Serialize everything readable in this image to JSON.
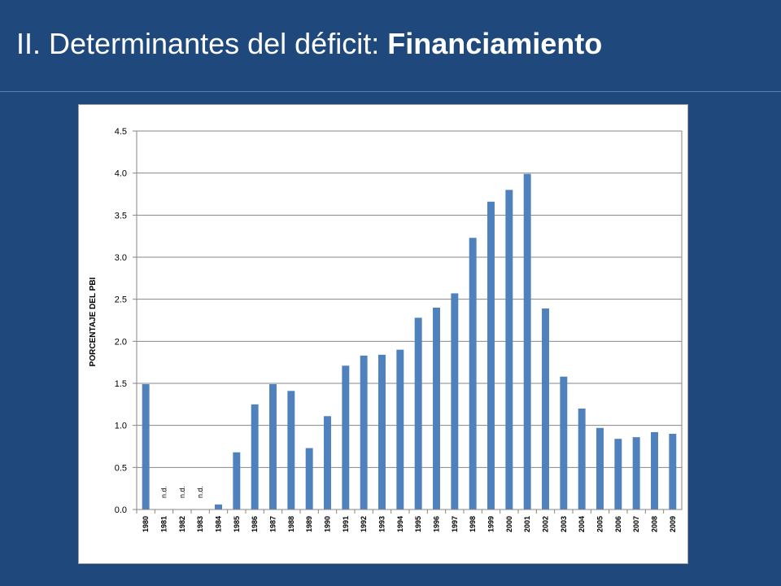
{
  "slide": {
    "title_prefix": "II. Determinantes del déficit: ",
    "title_bold": "Financiamiento"
  },
  "chart_data": {
    "type": "bar",
    "title": "",
    "xlabel": "",
    "ylabel": "PORCENTAJE DEL PBI",
    "ylim": [
      0,
      4.5
    ],
    "ytick_step": 0.5,
    "grid": true,
    "legend": "none",
    "bar_color": "#4f81bd",
    "categories": [
      "1980",
      "1981",
      "1982",
      "1983",
      "1984",
      "1985",
      "1986",
      "1987",
      "1988",
      "1989",
      "1990",
      "1991",
      "1992",
      "1993",
      "1994",
      "1995",
      "1996",
      "1997",
      "1998",
      "1999",
      "2000",
      "2001",
      "2002",
      "2003",
      "2004",
      "2005",
      "2006",
      "2007",
      "2008",
      "2009"
    ],
    "values": [
      1.49,
      null,
      null,
      null,
      0.06,
      0.68,
      1.25,
      1.49,
      1.41,
      0.73,
      1.11,
      1.71,
      1.83,
      1.84,
      1.9,
      2.28,
      2.4,
      2.57,
      3.23,
      3.66,
      3.8,
      3.99,
      2.39,
      1.58,
      1.2,
      0.97,
      0.84,
      0.86,
      0.92,
      0.9
    ],
    "annotations": [
      {
        "category": "1981",
        "text": "n.d."
      },
      {
        "category": "1982",
        "text": "n.d."
      },
      {
        "category": "1983",
        "text": "n.d."
      }
    ]
  }
}
